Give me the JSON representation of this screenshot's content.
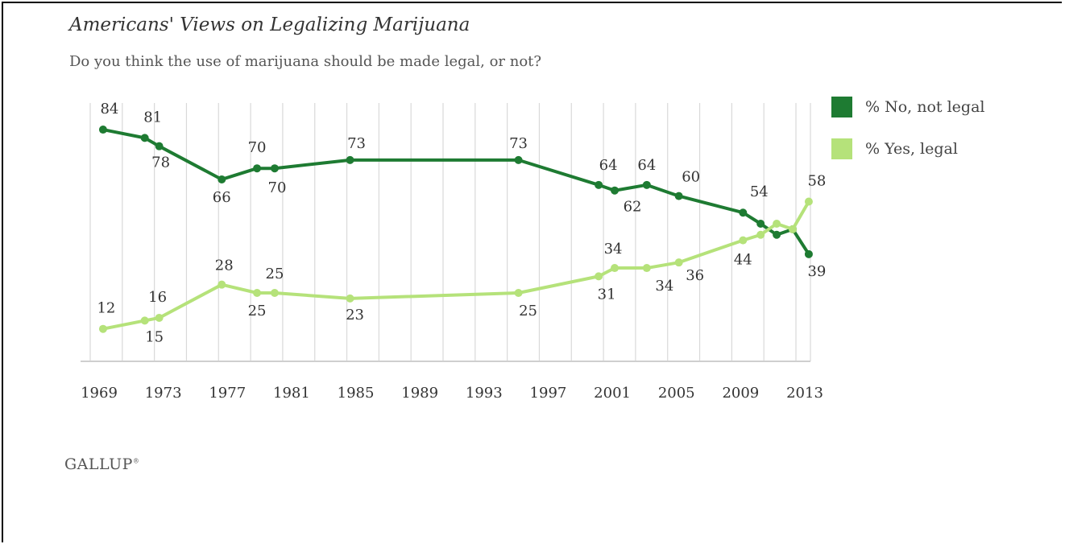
{
  "brand": "GALLUP",
  "chart_data": {
    "type": "line",
    "title": "Americans' Views on Legalizing Marijuana",
    "subtitle": "Do you think the use of marijuana should be made legal, or not?",
    "xlabel": "",
    "ylabel": "",
    "xlim": [
      1969,
      2013
    ],
    "ylim": [
      0,
      100
    ],
    "x_ticks": [
      "1969",
      "1973",
      "1977",
      "1981",
      "1985",
      "1989",
      "1993",
      "1997",
      "2001",
      "2005",
      "2009",
      "2013"
    ],
    "grid": true,
    "legend_position": "right",
    "series": [
      {
        "name": "% No, not legal",
        "color": "#1e7b32",
        "x": [
          1969.8,
          1972.4,
          1973.3,
          1977.2,
          1979.4,
          1980.5,
          1985.2,
          1995.7,
          2000.7,
          2001.7,
          2003.7,
          2005.7,
          2009.7,
          2010.8,
          2011.8,
          2012.8,
          2013.8
        ],
        "values": [
          84,
          81,
          78,
          66,
          70,
          70,
          73,
          73,
          64,
          62,
          64,
          60,
          54,
          50,
          46,
          48,
          39
        ],
        "labels": [
          "84",
          "81",
          "78",
          "66",
          "70",
          "70",
          "73",
          "73",
          "64",
          "62",
          "64",
          "60",
          "54",
          "",
          "",
          "",
          "39"
        ]
      },
      {
        "name": "% Yes, legal",
        "color": "#b5e27a",
        "x": [
          1969.8,
          1972.4,
          1973.3,
          1977.2,
          1979.4,
          1980.5,
          1985.2,
          1995.7,
          2000.7,
          2001.7,
          2003.7,
          2005.7,
          2009.7,
          2010.8,
          2011.8,
          2012.8,
          2013.8
        ],
        "values": [
          12,
          15,
          16,
          28,
          25,
          25,
          23,
          25,
          31,
          34,
          34,
          36,
          44,
          46,
          50,
          48,
          58
        ],
        "labels": [
          "12",
          "15",
          "16",
          "28",
          "25",
          "25",
          "23",
          "25",
          "31",
          "34",
          "34",
          "36",
          "44",
          "",
          "",
          "",
          "58"
        ]
      }
    ]
  }
}
